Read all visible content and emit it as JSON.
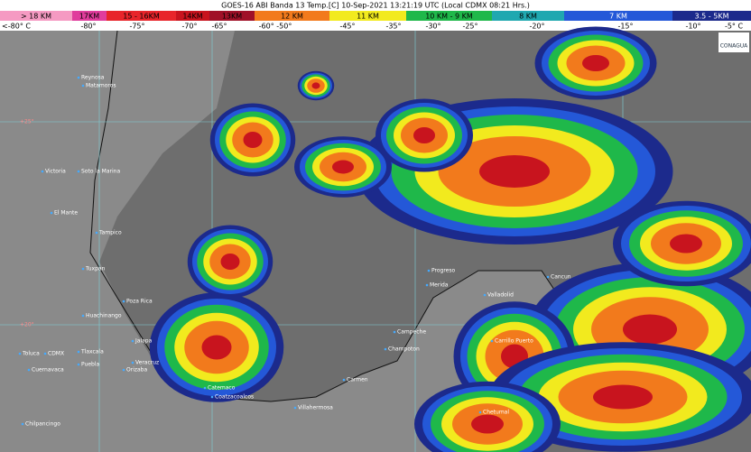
{
  "header": {
    "title": "GOES-16 ABI Banda 13 Temp.[C] 10-Sep-2021 13:21:19 UTC (Local CDMX  08:21 Hrs.)",
    "logo": "CONAGUA"
  },
  "legend": {
    "heights": [
      {
        "label": "> 18 KM",
        "color": "#f59ac2"
      },
      {
        "label": "17KM",
        "color": "#e03c9c"
      },
      {
        "label": "15 - 16KM",
        "color": "#e8252a"
      },
      {
        "label": "14KM",
        "color": "#c8141e"
      },
      {
        "label": "13KM",
        "color": "#a01028"
      },
      {
        "label": "12 KM",
        "color": "#f27a1c"
      },
      {
        "label": "11 KM",
        "color": "#f2ea1e"
      },
      {
        "label": "10 KM - 9 KM",
        "color": "#1fb84a"
      },
      {
        "label": "8 KM",
        "color": "#20a8b0"
      },
      {
        "label": "7 KM",
        "color": "#2458d8"
      },
      {
        "label": "3.5 - 5KM",
        "color": "#1c2a8c"
      }
    ],
    "temperatures": [
      "<-80° C",
      "-80°",
      "-75°",
      "-70°",
      "-65°",
      "-60° -50°",
      "-45°",
      "-35°",
      "-30°",
      "-25°",
      "-20°",
      "-15°",
      "-10°",
      "-5° C"
    ]
  },
  "map": {
    "latitudes": [
      "+25°",
      "+20°"
    ],
    "cities": [
      "Reynosa",
      "Matamoros",
      "Victoria",
      "Soto la Marina",
      "El Mante",
      "Tampico",
      "Tuxpan",
      "Poza Rica",
      "Huachinango",
      "Jalapa",
      "Veracruz",
      "Orizaba",
      "Puebla",
      "Tlaxcala",
      "CDMX",
      "Toluca",
      "Cuernavaca",
      "Chilpancingo",
      "Catemaco",
      "Coatzacoalcos",
      "Villahermosa",
      "Campeche",
      "Champoton",
      "Progreso",
      "Merida",
      "Valladolid",
      "Cancun",
      "Carrillo Puerto",
      "Chetumal",
      "Carmen"
    ]
  }
}
